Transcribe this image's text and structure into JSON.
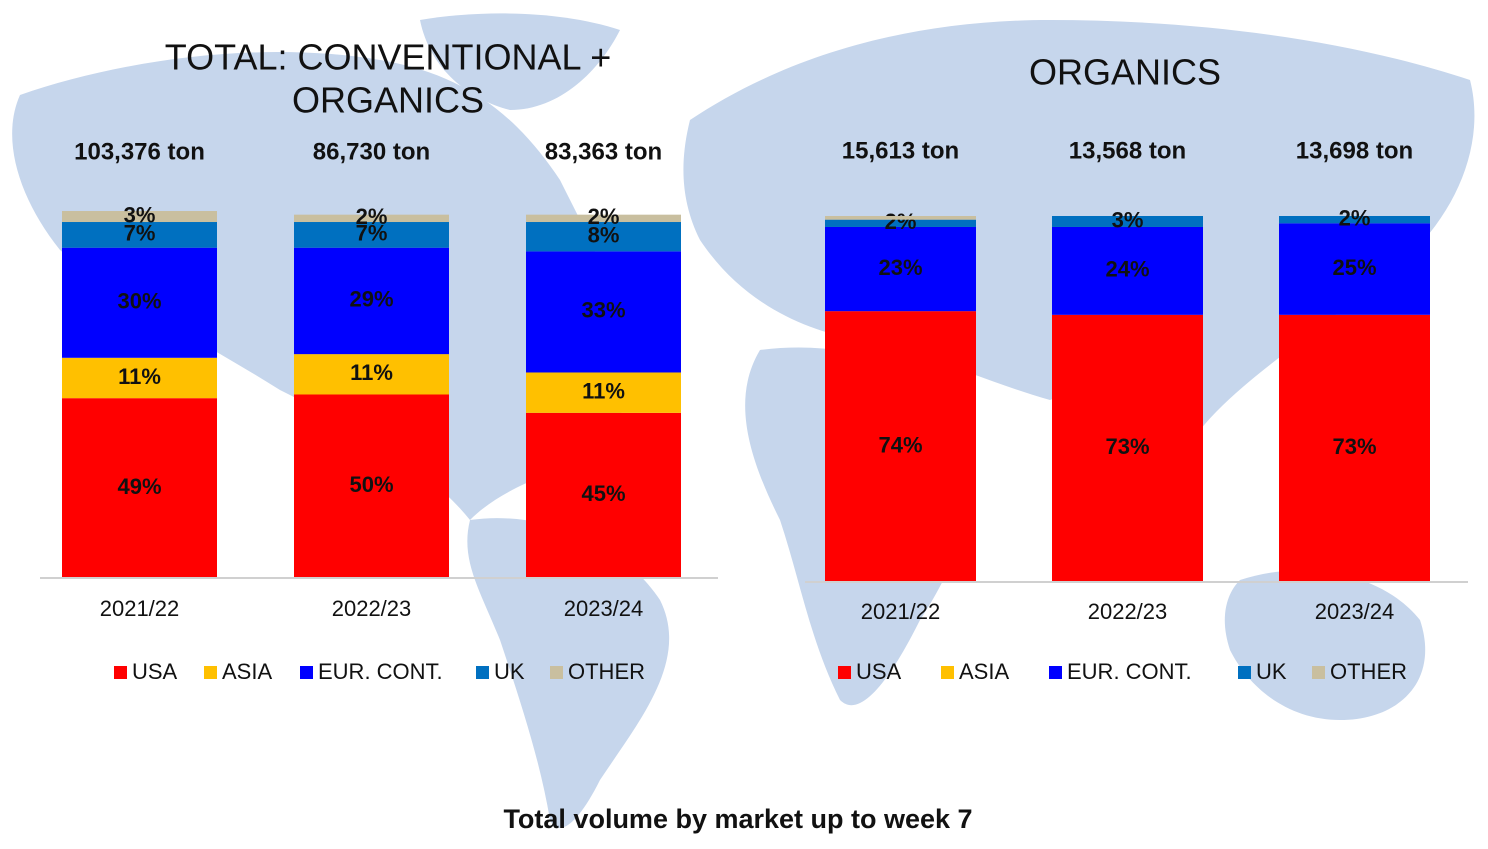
{
  "chart_data": [
    {
      "type": "stacked_bar",
      "title": [
        "TOTAL: CONVENTIONAL +",
        "ORGANICS"
      ],
      "categories": [
        "2021/22",
        "2022/23",
        "2023/24"
      ],
      "annotations": [
        "103,376 ton",
        "86,730 ton",
        "83,363 ton"
      ],
      "ylim": [
        0,
        100
      ],
      "series": [
        {
          "name": "USA",
          "color": "#ff0000",
          "values": [
            49,
            50,
            45
          ],
          "value_labels": [
            "49%",
            "50%",
            "45%"
          ]
        },
        {
          "name": "ASIA",
          "color": "#ffc000",
          "values": [
            11,
            11,
            11
          ],
          "value_labels": [
            "11%",
            "11%",
            "11%"
          ]
        },
        {
          "name": "EUR. CONT.",
          "color": "#0000ff",
          "values": [
            30,
            29,
            33
          ],
          "value_labels": [
            "30%",
            "29%",
            "33%"
          ]
        },
        {
          "name": "UK",
          "color": "#0070c0",
          "values": [
            7,
            7,
            8
          ],
          "value_labels": [
            "7%",
            "7%",
            "8%"
          ]
        },
        {
          "name": "OTHER",
          "color": "#c9bf9f",
          "values": [
            3,
            2,
            2
          ],
          "value_labels": [
            "3%",
            "2%",
            "2%"
          ]
        }
      ]
    },
    {
      "type": "stacked_bar",
      "title": [
        "ORGANICS"
      ],
      "categories": [
        "2021/22",
        "2022/23",
        "2023/24"
      ],
      "annotations": [
        "15,613 ton",
        "13,568 ton",
        "13,698 ton"
      ],
      "ylim": [
        0,
        100
      ],
      "series": [
        {
          "name": "USA",
          "color": "#ff0000",
          "values": [
            74,
            73,
            73
          ],
          "value_labels": [
            "74%",
            "73%",
            "73%"
          ]
        },
        {
          "name": "ASIA",
          "color": "#ffc000",
          "values": [
            0,
            0,
            0
          ],
          "value_labels": [
            null,
            null,
            null
          ]
        },
        {
          "name": "EUR. CONT.",
          "color": "#0000ff",
          "values": [
            23,
            24,
            25
          ],
          "value_labels": [
            "23%",
            "24%",
            "25%"
          ]
        },
        {
          "name": "UK",
          "color": "#0070c0",
          "values": [
            2,
            3,
            2
          ],
          "value_labels": [
            "2%",
            "3%",
            "2%"
          ]
        },
        {
          "name": "OTHER",
          "color": "#c9bf9f",
          "values": [
            1,
            0,
            0
          ],
          "value_labels": [
            null,
            null,
            null
          ]
        }
      ]
    }
  ],
  "caption": "Total volume by market up to week 7"
}
